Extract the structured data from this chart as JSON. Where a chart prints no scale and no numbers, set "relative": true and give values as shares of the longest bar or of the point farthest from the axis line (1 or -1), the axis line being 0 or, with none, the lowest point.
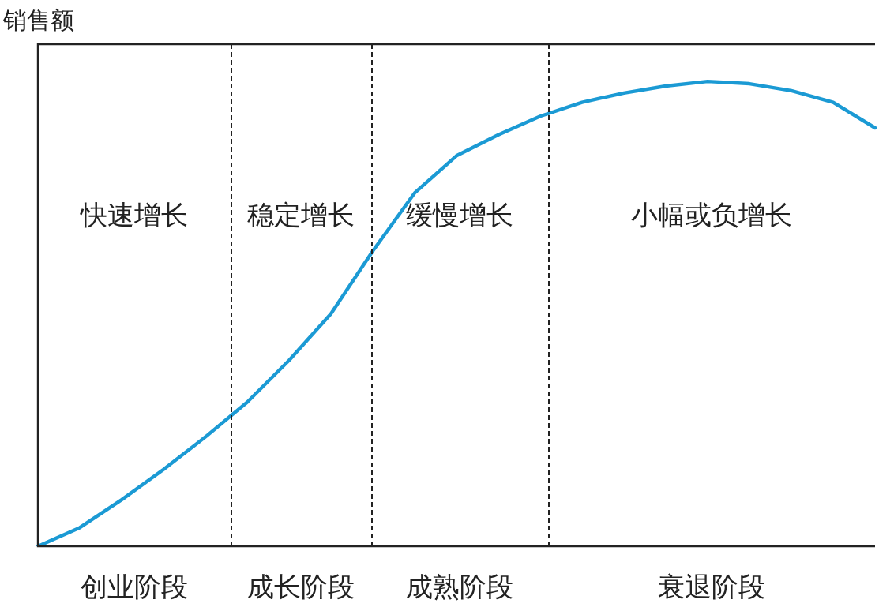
{
  "chart_data": {
    "type": "line",
    "relative": true,
    "ylabel": "销售额",
    "legend": false,
    "marker": "none",
    "line_style": "solid",
    "categories": [
      null,
      null,
      null,
      null,
      null,
      null,
      null,
      null,
      null,
      null,
      null,
      null,
      null,
      null,
      null,
      null,
      null,
      null,
      null,
      null,
      null
    ],
    "series": [
      {
        "color": "#1b9ad4",
        "values": [
          0,
          0.04,
          0.1,
          0.165,
          0.235,
          0.31,
          0.4,
          0.5,
          0.635,
          0.76,
          0.84,
          0.885,
          0.925,
          0.955,
          0.975,
          0.99,
          1,
          0.995,
          0.98,
          0.955,
          0.9
        ]
      }
    ],
    "annotations": [
      "快速增长",
      "稳定增长",
      "缓慢增长",
      "小幅或负增长",
      "创业阶段",
      "成长阶段",
      "成熟阶段",
      "衰退阶段"
    ]
  }
}
